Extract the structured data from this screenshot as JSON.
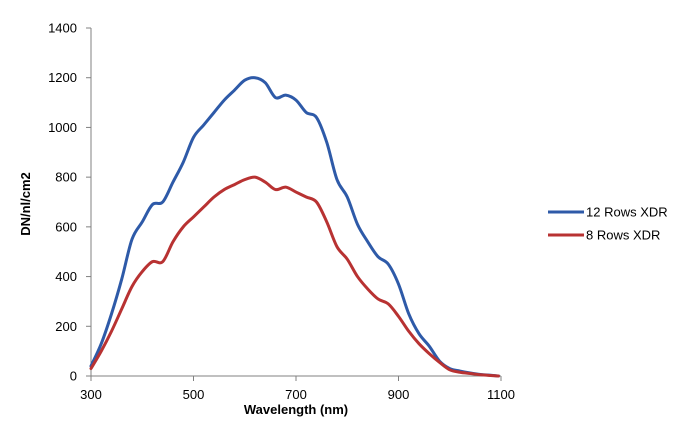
{
  "chart_data": {
    "type": "line",
    "title": "",
    "xlabel": "Wavelength (nm)",
    "ylabel": "DN/nl/cm2",
    "xlim": [
      300,
      1100
    ],
    "ylim": [
      0,
      1400
    ],
    "xticks": [
      "300",
      "500",
      "700",
      "900",
      "1100"
    ],
    "yticks": [
      "0",
      "200",
      "400",
      "600",
      "800",
      "1000",
      "1200",
      "1400"
    ],
    "grid": false,
    "legend_position": "right",
    "series": [
      {
        "name": "12 Rows XDR",
        "color": "#2e5aa8",
        "x": [
          300,
          320,
          340,
          360,
          380,
          400,
          420,
          440,
          460,
          480,
          500,
          520,
          540,
          560,
          580,
          600,
          620,
          640,
          660,
          680,
          700,
          720,
          740,
          760,
          780,
          800,
          820,
          840,
          860,
          880,
          900,
          920,
          940,
          960,
          980,
          1000,
          1020,
          1040,
          1060,
          1080,
          1095
        ],
        "y": [
          40,
          130,
          250,
          390,
          550,
          620,
          690,
          700,
          780,
          860,
          960,
          1010,
          1060,
          1110,
          1150,
          1190,
          1200,
          1180,
          1120,
          1130,
          1110,
          1060,
          1040,
          940,
          790,
          720,
          610,
          540,
          480,
          450,
          370,
          250,
          170,
          120,
          60,
          30,
          20,
          12,
          6,
          3,
          0
        ]
      },
      {
        "name": "8 Rows XDR",
        "color": "#b83232",
        "x": [
          300,
          320,
          340,
          360,
          380,
          400,
          420,
          440,
          460,
          480,
          500,
          520,
          540,
          560,
          580,
          600,
          620,
          640,
          660,
          680,
          700,
          720,
          740,
          760,
          780,
          800,
          820,
          840,
          860,
          880,
          900,
          920,
          940,
          960,
          980,
          1000,
          1020,
          1040,
          1060,
          1080,
          1095
        ],
        "y": [
          30,
          100,
          180,
          270,
          360,
          420,
          460,
          460,
          540,
          600,
          640,
          680,
          720,
          750,
          770,
          790,
          800,
          780,
          750,
          760,
          740,
          720,
          700,
          620,
          520,
          470,
          400,
          350,
          310,
          290,
          240,
          180,
          130,
          90,
          55,
          25,
          15,
          10,
          5,
          2,
          0
        ]
      }
    ]
  }
}
